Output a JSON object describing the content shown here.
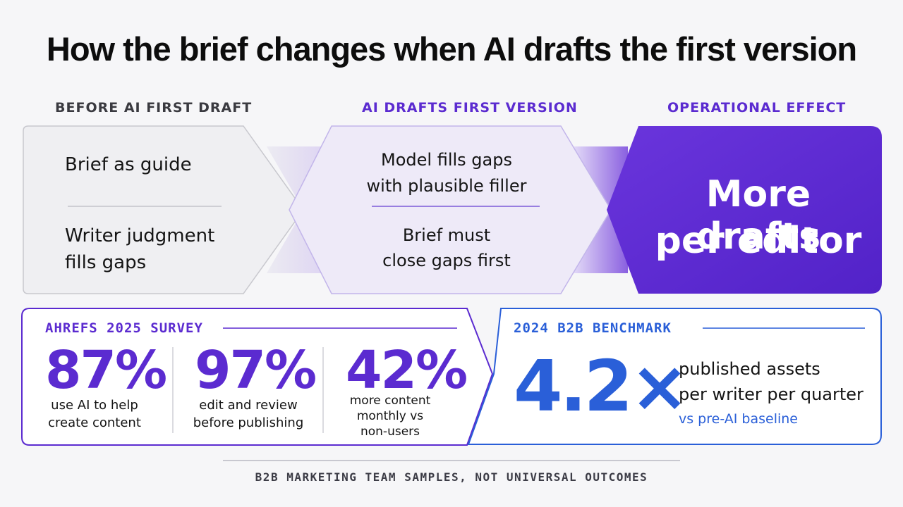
{
  "title": "How the brief changes when AI drafts the first version",
  "columns": {
    "before": {
      "heading": "BEFORE AI FIRST DRAFT",
      "line1": "Brief as guide",
      "line2a": "Writer judgment",
      "line2b": "fills gaps"
    },
    "ai": {
      "heading": "AI DRAFTS FIRST VERSION",
      "line1a": "Model fills gaps",
      "line1b": "with plausible filler",
      "line2a": "Brief must",
      "line2b": "close gaps first"
    },
    "effect": {
      "heading": "OPERATIONAL EFFECT",
      "line1": "More drafts",
      "line2": "per editor"
    }
  },
  "survey": {
    "label": "AHREFS 2025 SURVEY",
    "stats": [
      {
        "value": "87%",
        "desc1": "use AI to help",
        "desc2": "create content",
        "desc3": ""
      },
      {
        "value": "97%",
        "desc1": "edit and review",
        "desc2": "before publishing",
        "desc3": ""
      },
      {
        "value": "42%",
        "desc1": "more content",
        "desc2": "monthly vs",
        "desc3": "non-users"
      }
    ]
  },
  "benchmark": {
    "label": "2024 B2B BENCHMARK",
    "value": "4.2×",
    "desc1": "published assets",
    "desc2": "per writer per quarter",
    "note": "vs pre-AI baseline"
  },
  "footer": "B2B MARKETING TEAM SAMPLES, NOT UNIVERSAL OUTCOMES",
  "colors": {
    "purple": "#5b2bd0",
    "purple_dark": "#4a1fc4",
    "blue": "#2a5fd8",
    "grey_panel": "#ededf0",
    "lavender_panel": "#eeeaf8"
  }
}
